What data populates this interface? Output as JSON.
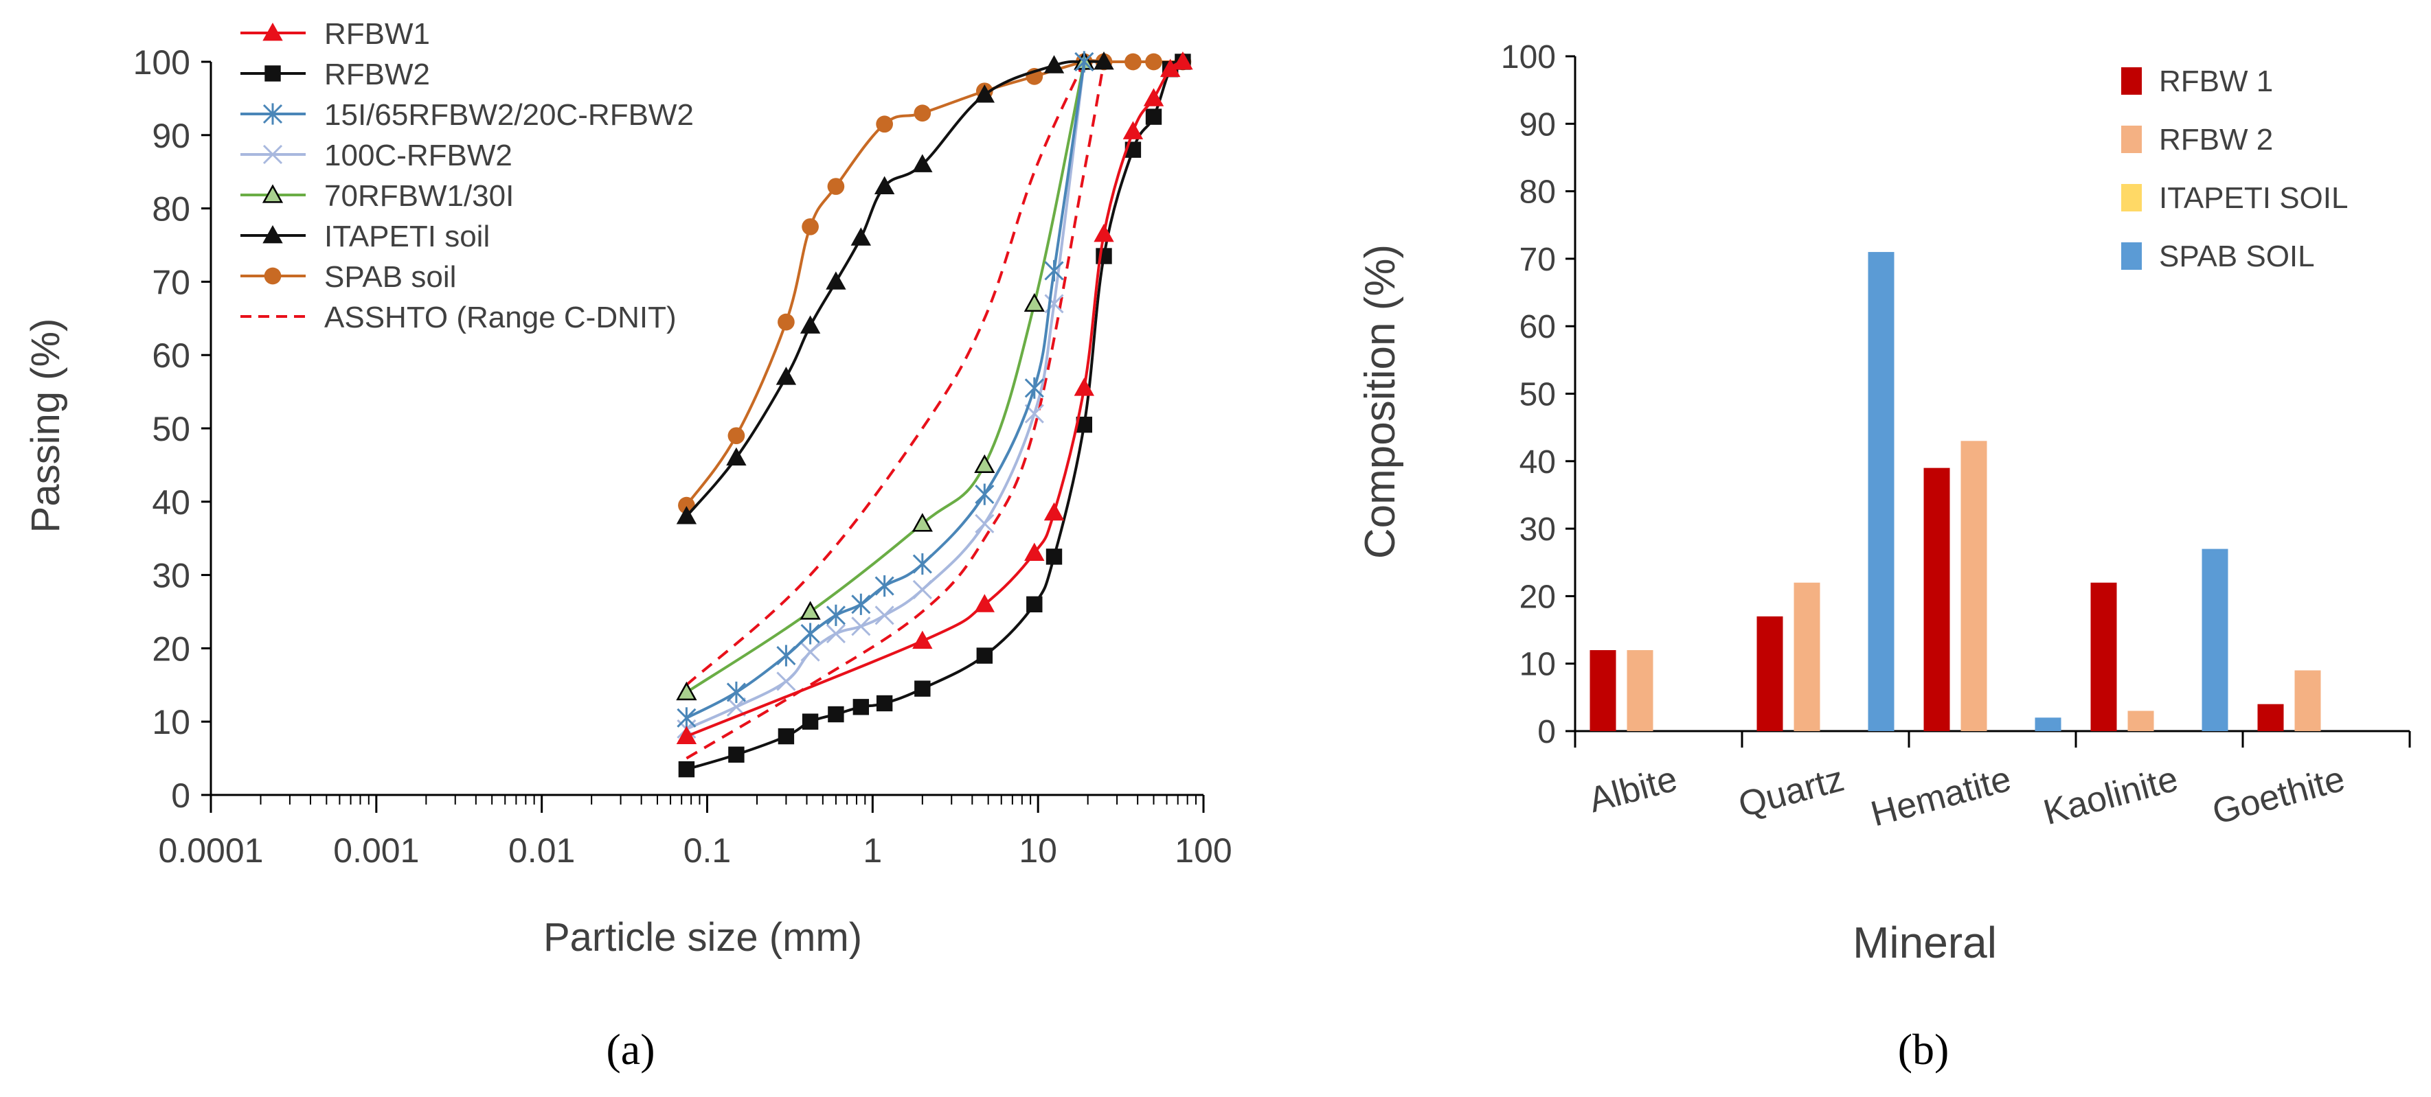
{
  "chart_data": [
    {
      "panel": "(a)",
      "type": "line",
      "xlabel": "Particle size (mm)",
      "ylabel": "Passing (%)",
      "xscale": "log",
      "xlim": [
        0.0001,
        100
      ],
      "ylim": [
        0,
        100
      ],
      "xticks": [
        "0.0001",
        "0.001",
        "0.01",
        "0.1",
        "1",
        "10",
        "100"
      ],
      "yticks": [
        "0",
        "10",
        "20",
        "30",
        "40",
        "50",
        "60",
        "70",
        "80",
        "90",
        "100"
      ],
      "legend_position": "top-left",
      "series": [
        {
          "name": "RFBW1",
          "color": "#e8101a",
          "marker": "triangle",
          "x": [
            0.075,
            2,
            4.75,
            9.5,
            12.5,
            19,
            25,
            37.5,
            50,
            63,
            75
          ],
          "y": [
            8,
            21,
            26,
            33,
            38.5,
            55.5,
            76.5,
            90.5,
            95,
            99,
            100
          ]
        },
        {
          "name": "RFBW2",
          "color": "#111111",
          "marker": "square",
          "x": [
            0.075,
            0.15,
            0.3,
            0.42,
            0.6,
            0.85,
            1.18,
            2,
            4.75,
            9.5,
            12.5,
            19,
            25,
            37.5,
            50,
            63,
            75
          ],
          "y": [
            3.5,
            5.5,
            8,
            10,
            11,
            12,
            12.5,
            14.5,
            19,
            26,
            32.5,
            50.5,
            73.5,
            88,
            92.5,
            99,
            100
          ]
        },
        {
          "name": "15I/65RFBW2/20C-RFBW2",
          "color": "#4a86b8",
          "marker": "star",
          "x": [
            0.075,
            0.15,
            0.3,
            0.42,
            0.6,
            0.85,
            1.18,
            2,
            4.75,
            9.5,
            12.5,
            19
          ],
          "y": [
            10.5,
            14,
            19,
            22,
            24.5,
            26,
            28.5,
            31.5,
            41,
            55.5,
            71.5,
            100
          ]
        },
        {
          "name": "100C-RFBW2",
          "color": "#a8b8de",
          "marker": "x",
          "x": [
            0.075,
            0.15,
            0.3,
            0.42,
            0.6,
            0.85,
            1.18,
            2,
            4.75,
            9.5,
            12.5,
            19
          ],
          "y": [
            9,
            12,
            15.5,
            19.5,
            22,
            23,
            24.5,
            28,
            37,
            52,
            67,
            100
          ]
        },
        {
          "name": "70RFBW1/30I",
          "color": "#6aad45",
          "marker": "triangle-green",
          "x": [
            0.075,
            0.42,
            2,
            4.75,
            9.5,
            19
          ],
          "y": [
            14,
            25,
            37,
            45,
            67,
            100
          ]
        },
        {
          "name": "ITAPETI soil",
          "color": "#111111",
          "marker": "triangle-black",
          "x": [
            0.075,
            0.15,
            0.3,
            0.42,
            0.6,
            0.85,
            1.18,
            2,
            4.75,
            12.5,
            19,
            25
          ],
          "y": [
            38,
            46,
            57,
            64,
            70,
            76,
            83,
            86,
            95.5,
            99.5,
            100,
            100
          ]
        },
        {
          "name": "SPAB soil",
          "color": "#c86a24",
          "marker": "circle",
          "x": [
            0.075,
            0.15,
            0.3,
            0.42,
            0.6,
            1.18,
            2,
            4.75,
            9.5,
            19,
            25,
            37.5,
            50,
            75
          ],
          "y": [
            39.5,
            49,
            64.5,
            77.5,
            83,
            91.5,
            93,
            96,
            98,
            100,
            100,
            100,
            100,
            100
          ]
        },
        {
          "name": "ASSHTO (Range C-DNIT)",
          "color": "#e8101a",
          "marker": "none",
          "dashed": true,
          "bands": [
            {
              "x": [
                0.075,
                0.42,
                2,
                4.75,
                9.5,
                19
              ],
              "y": [
                15,
                30,
                50,
                65,
                85,
                100
              ]
            },
            {
              "x": [
                0.075,
                0.42,
                2,
                4.75,
                9.5,
                19,
                25
              ],
              "y": [
                5,
                15,
                25,
                35,
                50,
                85,
                100
              ]
            }
          ]
        }
      ]
    },
    {
      "panel": "(b)",
      "type": "bar",
      "xlabel": "Mineral",
      "ylabel": "Composition (%)",
      "ylim": [
        0,
        100
      ],
      "yticks": [
        "0",
        "10",
        "20",
        "30",
        "40",
        "50",
        "60",
        "70",
        "80",
        "90",
        "100"
      ],
      "legend_position": "top-right",
      "categories": [
        "Albite",
        "Quartz",
        "Hematite",
        "Kaolinite",
        "Goethite"
      ],
      "series": [
        {
          "name": "RFBW 1",
          "color": "#c00000",
          "values": [
            12,
            17,
            39,
            22,
            4
          ]
        },
        {
          "name": "RFBW 2",
          "color": "#f4b183",
          "values": [
            12,
            22,
            43,
            3,
            9
          ]
        },
        {
          "name": "ITAPETI SOIL",
          "color": "#ffd966",
          "values": [
            0,
            0,
            0,
            0,
            0
          ]
        },
        {
          "name": "SPAB SOIL",
          "color": "#5b9bd5",
          "values": [
            0,
            71,
            2,
            27,
            0
          ]
        }
      ]
    }
  ]
}
